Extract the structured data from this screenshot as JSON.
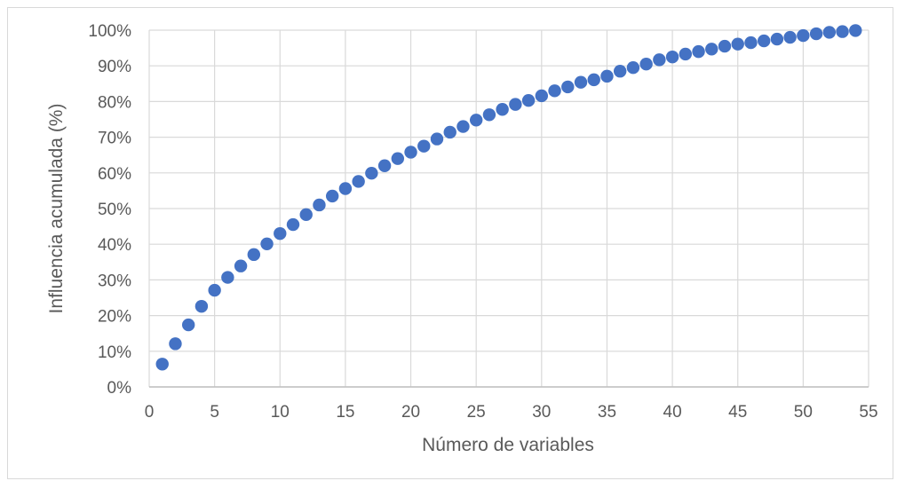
{
  "chart_data": {
    "type": "scatter",
    "title": "",
    "xlabel": "Número de variables",
    "ylabel": "Influencia acumulada (%)",
    "xlim": [
      0,
      55
    ],
    "ylim": [
      0,
      100
    ],
    "xticks": [
      0,
      5,
      10,
      15,
      20,
      25,
      30,
      35,
      40,
      45,
      50,
      55
    ],
    "yticks": [
      0,
      10,
      20,
      30,
      40,
      50,
      60,
      70,
      80,
      90,
      100
    ],
    "ytick_labels": [
      "0%",
      "10%",
      "20%",
      "30%",
      "40%",
      "50%",
      "60%",
      "70%",
      "80%",
      "90%",
      "100%"
    ],
    "grid": true,
    "legend": "none",
    "marker_color": "#4472C4",
    "series": [
      {
        "x": [
          1,
          2,
          3,
          4,
          5,
          6,
          7,
          8,
          9,
          10,
          11,
          12,
          13,
          14,
          15,
          16,
          17,
          18,
          19,
          20,
          21,
          22,
          23,
          24,
          25,
          26,
          27,
          28,
          29,
          30,
          31,
          32,
          33,
          34,
          35,
          36,
          37,
          38,
          39,
          40,
          41,
          42,
          43,
          44,
          45,
          46,
          47,
          48,
          49,
          50,
          51,
          52,
          53,
          54
        ],
        "values": [
          6.4,
          12.1,
          17.4,
          22.6,
          27.1,
          30.7,
          33.9,
          37.1,
          40.1,
          43.0,
          45.5,
          48.3,
          51.0,
          53.5,
          55.6,
          57.6,
          59.9,
          62.0,
          64.0,
          65.8,
          67.5,
          69.5,
          71.4,
          73.0,
          74.8,
          76.3,
          77.8,
          79.2,
          80.3,
          81.6,
          83.0,
          84.1,
          85.4,
          86.1,
          87.1,
          88.5,
          89.5,
          90.5,
          91.7,
          92.5,
          93.3,
          94.0,
          94.7,
          95.5,
          96.1,
          96.5,
          97.0,
          97.5,
          98.0,
          98.5,
          99.0,
          99.4,
          99.6,
          99.9
        ]
      }
    ]
  }
}
